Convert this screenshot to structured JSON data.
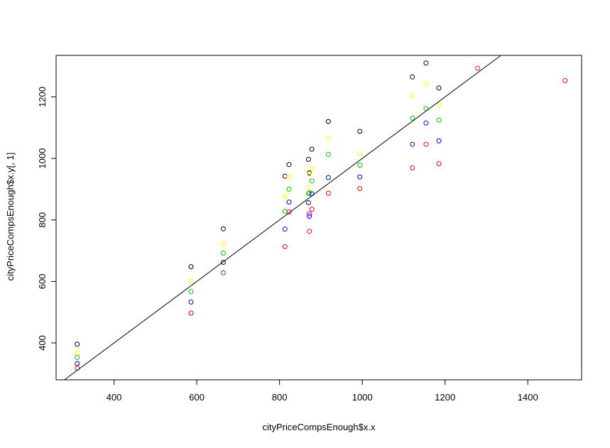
{
  "chart_data": {
    "type": "scatter",
    "title": "",
    "xlabel": "cityPriceCompsEnough$x.x",
    "ylabel": "cityPriceCompsEnough$x.y[, 1]",
    "xlim": [
      260,
      1530
    ],
    "ylim": [
      280,
      1335
    ],
    "x_ticks": [
      400,
      600,
      800,
      1000,
      1200,
      1400
    ],
    "y_ticks": [
      400,
      600,
      800,
      1000,
      1200
    ],
    "grid": false,
    "legend": "none",
    "point_style": "open-circle",
    "series": [
      {
        "color": "#000000",
        "points": [
          [
            311,
            396
          ],
          [
            586,
            648
          ],
          [
            664,
            771
          ],
          [
            813,
            942
          ],
          [
            823,
            980
          ],
          [
            870,
            997
          ],
          [
            872,
            953
          ],
          [
            878,
            1030
          ],
          [
            918,
            1120
          ],
          [
            994,
            1088
          ],
          [
            1121,
            1265
          ],
          [
            1154,
            1310
          ],
          [
            1185,
            1229
          ]
        ]
      },
      {
        "color": "#ffff00",
        "points": [
          [
            311,
            367
          ],
          [
            586,
            601
          ],
          [
            664,
            723
          ],
          [
            813,
            877
          ],
          [
            823,
            940
          ],
          [
            870,
            903
          ],
          [
            872,
            950
          ],
          [
            878,
            968
          ],
          [
            918,
            1066
          ],
          [
            994,
            1016
          ],
          [
            1121,
            1204
          ],
          [
            1154,
            1242
          ],
          [
            1185,
            1174
          ]
        ]
      },
      {
        "color": "#00cc00",
        "points": [
          [
            311,
            353
          ],
          [
            586,
            567
          ],
          [
            664,
            692
          ],
          [
            813,
            828
          ],
          [
            823,
            900
          ],
          [
            870,
            886
          ],
          [
            872,
            888
          ],
          [
            878,
            927
          ],
          [
            918,
            1013
          ],
          [
            994,
            978
          ],
          [
            1121,
            1131
          ],
          [
            1154,
            1162
          ],
          [
            1185,
            1125
          ]
        ]
      },
      {
        "color": "#0000cc",
        "points": [
          [
            311,
            333
          ],
          [
            586,
            533
          ],
          [
            664,
            662
          ],
          [
            813,
            770
          ],
          [
            823,
            858
          ],
          [
            870,
            856
          ],
          [
            872,
            812
          ],
          [
            878,
            885
          ],
          [
            918,
            938
          ],
          [
            994,
            940
          ],
          [
            1121,
            1046
          ],
          [
            1154,
            1115
          ],
          [
            1185,
            1057
          ]
        ]
      },
      {
        "color": "#cc00cc",
        "points": [
          [
            872,
            820
          ]
        ]
      },
      {
        "color": "#ff0000",
        "points": [
          [
            311,
            318
          ],
          [
            586,
            497
          ],
          [
            664,
            628
          ],
          [
            813,
            713
          ],
          [
            823,
            826
          ],
          [
            872,
            763
          ],
          [
            878,
            835
          ],
          [
            918,
            887
          ],
          [
            994,
            902
          ],
          [
            1121,
            969
          ],
          [
            1154,
            1046
          ],
          [
            1185,
            983
          ],
          [
            1279,
            1293
          ],
          [
            1490,
            1253
          ]
        ]
      }
    ],
    "reference_line": {
      "color": "#000000",
      "intercept": 0,
      "slope": 1
    }
  }
}
